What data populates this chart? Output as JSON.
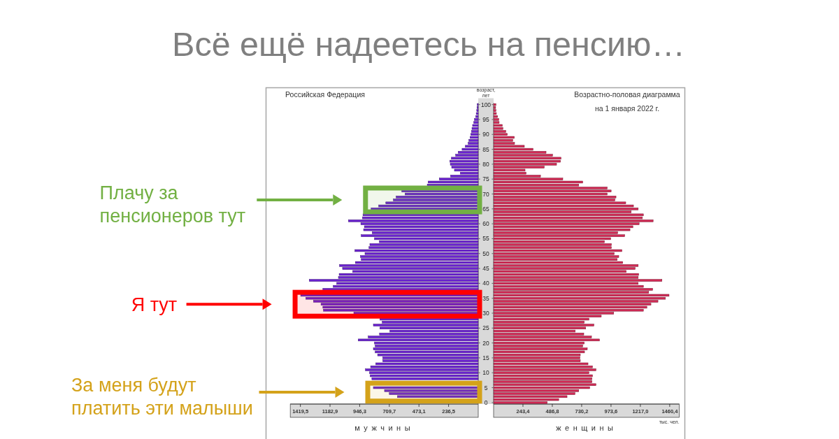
{
  "chart_data": [
    {
      "type": "bar",
      "orientation": "horizontal",
      "title": "Всё ещё надеетесь на пенсию…",
      "subtitle": "Российская Федерация",
      "xlabel": "мужчины",
      "ylabel": "возраст, лет",
      "color": "#6a22d0",
      "x": [
        100,
        99,
        98,
        97,
        96,
        95,
        94,
        93,
        92,
        91,
        90,
        89,
        88,
        87,
        86,
        85,
        84,
        83,
        82,
        81,
        80,
        79,
        78,
        77,
        76,
        75,
        74,
        73,
        72,
        71,
        70,
        69,
        68,
        67,
        66,
        65,
        64,
        63,
        62,
        61,
        60,
        59,
        58,
        57,
        56,
        55,
        54,
        53,
        52,
        51,
        50,
        49,
        48,
        47,
        46,
        45,
        44,
        43,
        42,
        41,
        40,
        39,
        38,
        37,
        36,
        35,
        34,
        33,
        32,
        31,
        30,
        29,
        28,
        27,
        26,
        25,
        24,
        23,
        22,
        21,
        20,
        19,
        18,
        17,
        16,
        15,
        14,
        13,
        12,
        11,
        10,
        9,
        8,
        7,
        6,
        5,
        4,
        3,
        2
      ],
      "values": [
        8,
        10,
        12,
        16,
        20,
        30,
        36,
        45,
        50,
        54,
        60,
        65,
        74,
        80,
        103,
        129,
        160,
        180,
        214,
        227,
        223,
        212,
        190,
        143,
        221,
        311,
        400,
        407,
        null,
        610,
        584,
        655,
        677,
        738,
        794,
        855,
        null,
        920,
        924,
        1036,
        937,
        909,
        915,
        846,
        934,
        828,
        789,
        865,
        872,
        984,
        904,
        940,
        934,
        981,
        1107,
        1083,
        1002,
        1110,
        1116,
        1349,
        1129,
        1157,
        1240,
        null,
        1417,
        1376,
        1315,
        1255,
        1240,
        1235,
        993,
        null,
        785,
        766,
        837,
        785,
        705,
        788,
        878,
        958,
        828,
        822,
        837,
        822,
        803,
        762,
        762,
        818,
        859,
        900,
        868,
        862,
        849,
        null,
        null,
        837,
        748,
        710,
        645
      ],
      "xlim": [
        1500,
        0
      ],
      "xticks": [
        {
          "value": 1419.5,
          "label": "1419,5"
        },
        {
          "value": 1182.9,
          "label": "1182,9"
        },
        {
          "value": 946.3,
          "label": "946,3"
        },
        {
          "value": 709.7,
          "label": "709,7"
        },
        {
          "value": 473.1,
          "label": "473,1"
        },
        {
          "value": 236.5,
          "label": "236,5"
        }
      ],
      "ylim": [
        -0.5,
        100.5
      ],
      "yticks": [
        0,
        5,
        10,
        15,
        20,
        25,
        30,
        35,
        40,
        45,
        50,
        55,
        60,
        65,
        70,
        75,
        80,
        85,
        90,
        95,
        100
      ],
      "bands": [
        {
          "axis": "y",
          "from": 64,
          "to": 72,
          "label": "Плачу за пенсионеров тут",
          "color": "#72b043"
        },
        {
          "axis": "y",
          "from": 29,
          "to": 37,
          "label": "Я тут",
          "color": "#ff0000"
        },
        {
          "axis": "y",
          "from": 0.5,
          "to": 6.5,
          "label": "За меня будут платить эти малыши",
          "color": "#d4a21a"
        }
      ]
    },
    {
      "type": "bar",
      "orientation": "horizontal",
      "title": "Возрастно-половая диаграмма",
      "subtitle": "на 1 января 2022 г.",
      "xlabel": "женщины",
      "annotations": [
        "тыс. чел."
      ],
      "color": "#d12a55",
      "x": [
        100,
        99,
        98,
        97,
        96,
        95,
        94,
        93,
        92,
        91,
        90,
        89,
        88,
        87,
        86,
        85,
        84,
        83,
        82,
        81,
        80,
        79,
        78,
        77,
        76,
        75,
        74,
        73,
        72,
        71,
        70,
        69,
        68,
        67,
        66,
        65,
        64,
        63,
        62,
        61,
        60,
        59,
        58,
        57,
        56,
        55,
        54,
        53,
        52,
        51,
        50,
        49,
        48,
        47,
        46,
        45,
        44,
        43,
        42,
        41,
        40,
        39,
        38,
        37,
        36,
        35,
        34,
        33,
        32,
        31,
        30,
        29,
        28,
        27,
        26,
        25,
        24,
        23,
        22,
        21,
        20,
        19,
        18,
        17,
        16,
        15,
        14,
        13,
        12,
        11,
        10,
        9,
        8,
        7,
        6,
        5,
        4,
        3,
        2,
        1,
        0
      ],
      "values": [
        19,
        17,
        19,
        23,
        33,
        43,
        46,
        72,
        77,
        101,
        114,
        172,
        159,
        174,
        255,
        327,
        435,
        489,
        559,
        555,
        522,
        420,
        261,
        269,
        389,
        574,
        739,
        706,
        942,
        975,
        942,
        1015,
        1006,
        1096,
        1160,
        1199,
        1141,
        1242,
        1234,
        1323,
        1207,
        1155,
        1131,
        1029,
        1087,
        971,
        919,
        977,
        977,
        1064,
        1000,
        1038,
        1025,
        1071,
        1199,
        1174,
        1100,
        1203,
        1199,
        1396,
        1199,
        1242,
        1319,
        1286,
        1455,
        1425,
        1363,
        1305,
        1271,
        1242,
        996,
        893,
        791,
        752,
        832,
        764,
        677,
        748,
        812,
        878,
        752,
        739,
        777,
        754,
        719,
        716,
        719,
        783,
        820,
        849,
        791,
        820,
        816,
        816,
        849,
        797,
        706,
        675,
        609,
        540,
        445
      ],
      "xlim": [
        0,
        1540
      ],
      "xticks": [
        {
          "value": 243.4,
          "label": "243,4"
        },
        {
          "value": 486.8,
          "label": "486,8"
        },
        {
          "value": 730.2,
          "label": "730,2"
        },
        {
          "value": 973.6,
          "label": "973,6"
        },
        {
          "value": 1217.0,
          "label": "1217,0"
        },
        {
          "value": 1460.4,
          "label": "1460,4"
        }
      ],
      "ylim": [
        -0.5,
        100.5
      ],
      "tick_labels": "x"
    }
  ]
}
